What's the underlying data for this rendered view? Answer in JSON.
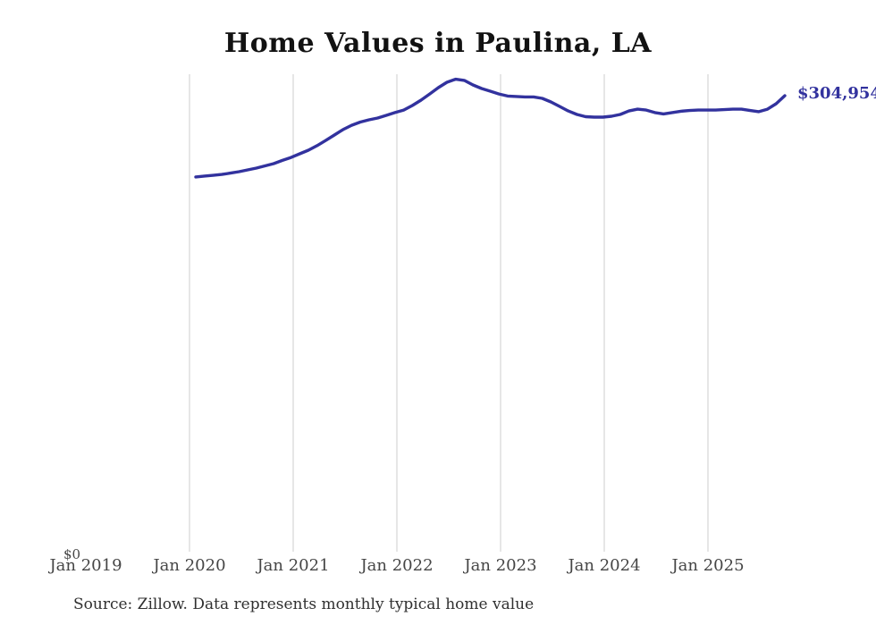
{
  "page": {
    "background": "#ffffff"
  },
  "chart_data": {
    "type": "line",
    "title": "Home Values in Paulina, LA",
    "source_note": "Source: Zillow. Data represents monthly typical home value",
    "end_label": "$304,954",
    "end_value": 304954,
    "y_axis": {
      "min_label": "$0",
      "min": 0
    },
    "ylim": [
      0,
      319000
    ],
    "grid": "vertical-only",
    "x_tick_labels": [
      "Jan 2019",
      "Jan 2020",
      "Jan 2021",
      "Jan 2022",
      "Jan 2023",
      "Jan 2024",
      "Jan 2025"
    ],
    "series": [
      {
        "name": "Monthly typical home value",
        "frequency": "monthly",
        "start_month": "2020-01",
        "end_month": "2025-09",
        "values": [
          250900,
          251500,
          252000,
          252600,
          253500,
          254400,
          255600,
          256800,
          258300,
          259800,
          261900,
          263900,
          266300,
          268700,
          271700,
          275200,
          278800,
          282400,
          285300,
          287400,
          288900,
          290100,
          291900,
          293700,
          295400,
          298400,
          302000,
          306100,
          310300,
          313900,
          315900,
          315100,
          312100,
          309700,
          307900,
          306100,
          304700,
          304400,
          304100,
          304100,
          303200,
          300800,
          297800,
          294800,
          292500,
          291000,
          290700,
          290700,
          291300,
          292500,
          294800,
          296000,
          295400,
          293700,
          292800,
          293700,
          294600,
          295100,
          295400,
          295400,
          295400,
          295700,
          296000,
          296000,
          295100,
          294300,
          296000,
          299600,
          304954
        ]
      }
    ],
    "line_color": "#32329E",
    "grid_color": "#CCCCCC",
    "axis_label_color": "#454545",
    "title_color": "#121212",
    "source_color": "#303030"
  }
}
